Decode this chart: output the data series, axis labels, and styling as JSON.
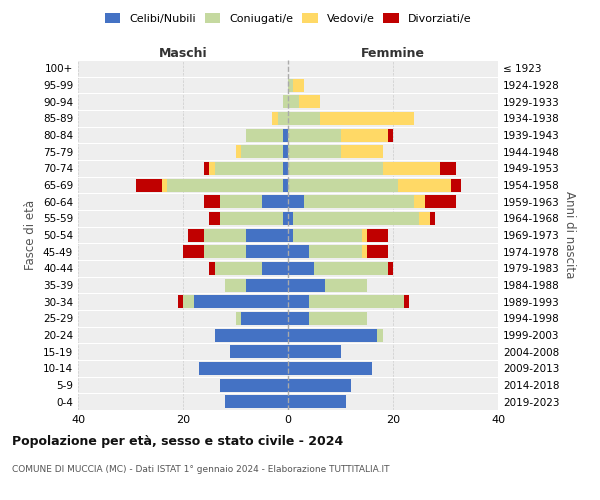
{
  "age_groups": [
    "0-4",
    "5-9",
    "10-14",
    "15-19",
    "20-24",
    "25-29",
    "30-34",
    "35-39",
    "40-44",
    "45-49",
    "50-54",
    "55-59",
    "60-64",
    "65-69",
    "70-74",
    "75-79",
    "80-84",
    "85-89",
    "90-94",
    "95-99",
    "100+"
  ],
  "birth_years": [
    "2019-2023",
    "2014-2018",
    "2009-2013",
    "2004-2008",
    "1999-2003",
    "1994-1998",
    "1989-1993",
    "1984-1988",
    "1979-1983",
    "1974-1978",
    "1969-1973",
    "1964-1968",
    "1959-1963",
    "1954-1958",
    "1949-1953",
    "1944-1948",
    "1939-1943",
    "1934-1938",
    "1929-1933",
    "1924-1928",
    "≤ 1923"
  ],
  "colors": {
    "celibi": "#4472c4",
    "coniugati": "#c5d9a0",
    "vedovi": "#ffd966",
    "divorziati": "#c00000"
  },
  "maschi": {
    "celibi": [
      12,
      13,
      17,
      11,
      14,
      9,
      18,
      8,
      5,
      8,
      8,
      1,
      5,
      1,
      1,
      1,
      1,
      0,
      0,
      0,
      0
    ],
    "coniugati": [
      0,
      0,
      0,
      0,
      0,
      1,
      2,
      4,
      9,
      8,
      8,
      12,
      8,
      22,
      13,
      8,
      7,
      2,
      1,
      0,
      0
    ],
    "vedovi": [
      0,
      0,
      0,
      0,
      0,
      0,
      0,
      0,
      0,
      0,
      0,
      0,
      0,
      1,
      1,
      1,
      0,
      1,
      0,
      0,
      0
    ],
    "divorziati": [
      0,
      0,
      0,
      0,
      0,
      0,
      1,
      0,
      1,
      4,
      3,
      2,
      3,
      5,
      1,
      0,
      0,
      0,
      0,
      0,
      0
    ]
  },
  "femmine": {
    "celibi": [
      11,
      12,
      16,
      10,
      17,
      4,
      4,
      7,
      5,
      4,
      1,
      1,
      3,
      0,
      0,
      0,
      0,
      0,
      0,
      0,
      0
    ],
    "coniugati": [
      0,
      0,
      0,
      0,
      1,
      11,
      18,
      8,
      14,
      10,
      13,
      24,
      21,
      21,
      18,
      10,
      10,
      6,
      2,
      1,
      0
    ],
    "vedovi": [
      0,
      0,
      0,
      0,
      0,
      0,
      0,
      0,
      0,
      1,
      1,
      2,
      2,
      10,
      11,
      8,
      9,
      18,
      4,
      2,
      0
    ],
    "divorziati": [
      0,
      0,
      0,
      0,
      0,
      0,
      1,
      0,
      1,
      4,
      4,
      1,
      6,
      2,
      3,
      0,
      1,
      0,
      0,
      0,
      0
    ]
  },
  "xlim": 40,
  "title": "Popolazione per età, sesso e stato civile - 2024",
  "subtitle": "COMUNE DI MUCCIA (MC) - Dati ISTAT 1° gennaio 2024 - Elaborazione TUTTITALIA.IT",
  "ylabel_left": "Fasce di età",
  "ylabel_right": "Anni di nascita",
  "legend_labels": [
    "Celibi/Nubili",
    "Coniugati/e",
    "Vedovi/e",
    "Divorziati/e"
  ],
  "bg_color": "#eeeeee"
}
